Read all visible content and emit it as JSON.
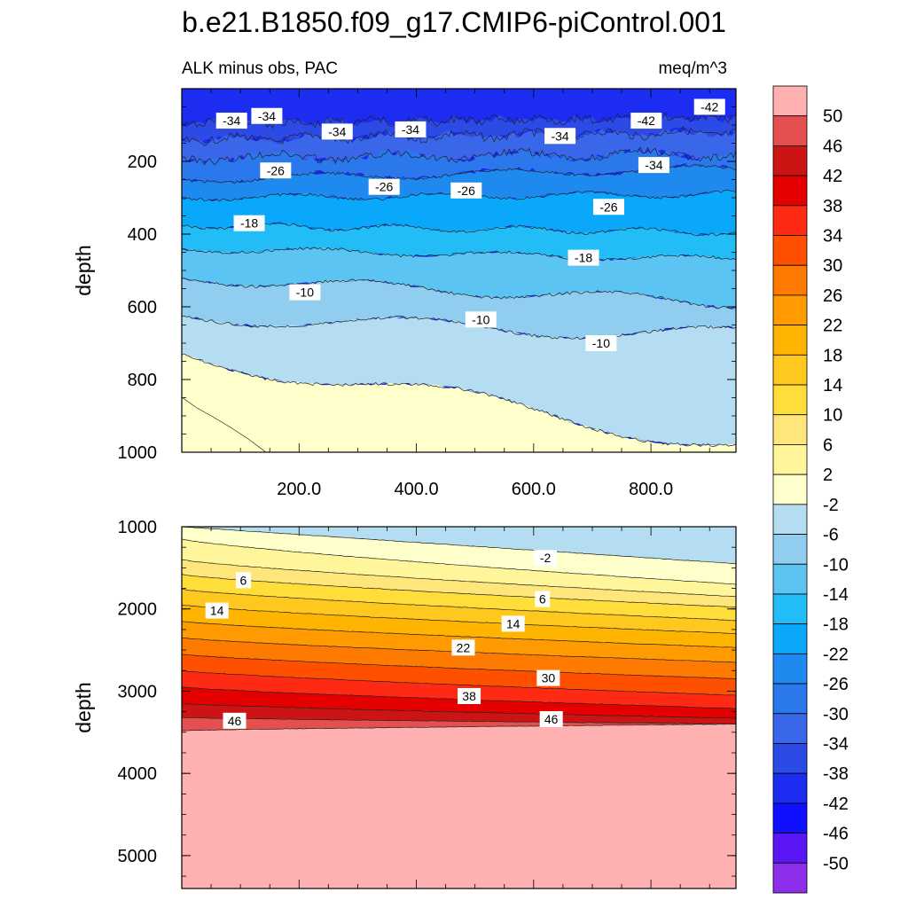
{
  "page": {
    "title": "b.e21.B1850.f09_g17.CMIP6-piControl.001"
  },
  "chart_data": {
    "type": "contour",
    "subtitle_left": "ALK minus obs, PAC",
    "subtitle_right": "meq/m^3",
    "variable": "ALK minus obs",
    "region": "PAC",
    "units": "meq/m^3",
    "colorbar": {
      "levels": [
        -50,
        -46,
        -42,
        -38,
        -34,
        -30,
        -26,
        -22,
        -18,
        -14,
        -10,
        -6,
        -2,
        2,
        6,
        10,
        14,
        18,
        22,
        26,
        30,
        34,
        38,
        42,
        46,
        50
      ],
      "labels": [
        "-50",
        "-46",
        "-42",
        "-38",
        "-34",
        "-30",
        "-26",
        "-22",
        "-18",
        "-14",
        "-10",
        "-6",
        "-2",
        "2",
        "6",
        "10",
        "14",
        "18",
        "22",
        "26",
        "30",
        "34",
        "38",
        "42",
        "46",
        "50"
      ],
      "colors": [
        "#8C2EEA",
        "#5A16F5",
        "#1010FF",
        "#1C2CF0",
        "#2C4AE6",
        "#3A66EA",
        "#2A78EC",
        "#1E8AF0",
        "#0AA8FA",
        "#22BCF6",
        "#5CC4F2",
        "#90CDEE",
        "#B4DDF2",
        "#FFFFCC",
        "#FFF59A",
        "#FFE67A",
        "#FFDE3A",
        "#FFC81E",
        "#FFB400",
        "#FF9A00",
        "#FF7A00",
        "#FF5000",
        "#FF2A14",
        "#E40000",
        "#CC1414",
        "#E45050",
        "#FFB0B0"
      ]
    },
    "panels": [
      {
        "name": "upper",
        "ylabel": "depth",
        "ylim": [
          0,
          1000
        ],
        "yticks": [
          "200",
          "400",
          "600",
          "800",
          "1000"
        ],
        "xlim": [
          0,
          945
        ],
        "xticks": [
          "200.0",
          "400.0",
          "600.0",
          "800.0"
        ],
        "contour_labels": [
          {
            "text": "-34",
            "x": 85,
            "y": 88
          },
          {
            "text": "-34",
            "x": 145,
            "y": 75
          },
          {
            "text": "-34",
            "x": 265,
            "y": 118
          },
          {
            "text": "-34",
            "x": 390,
            "y": 112
          },
          {
            "text": "-34",
            "x": 645,
            "y": 130
          },
          {
            "text": "-34",
            "x": 805,
            "y": 210
          },
          {
            "text": "-42",
            "x": 792,
            "y": 88
          },
          {
            "text": "-42",
            "x": 900,
            "y": 50
          },
          {
            "text": "-26",
            "x": 160,
            "y": 225
          },
          {
            "text": "-26",
            "x": 345,
            "y": 270
          },
          {
            "text": "-26",
            "x": 485,
            "y": 280
          },
          {
            "text": "-26",
            "x": 728,
            "y": 325
          },
          {
            "text": "-18",
            "x": 115,
            "y": 370
          },
          {
            "text": "-18",
            "x": 685,
            "y": 465
          },
          {
            "text": "-10",
            "x": 210,
            "y": 560
          },
          {
            "text": "-10",
            "x": 510,
            "y": 635
          },
          {
            "text": "-10",
            "x": 715,
            "y": 700
          }
        ]
      },
      {
        "name": "lower",
        "ylabel": "depth",
        "ylim": [
          1000,
          5400
        ],
        "yticks": [
          "1000",
          "2000",
          "3000",
          "4000",
          "5000"
        ],
        "xlim": [
          0,
          945
        ],
        "contour_labels": [
          {
            "text": "-2",
            "x": 620,
            "y": 1380
          },
          {
            "text": "6",
            "x": 105,
            "y": 1650
          },
          {
            "text": "6",
            "x": 615,
            "y": 1880
          },
          {
            "text": "14",
            "x": 60,
            "y": 2020
          },
          {
            "text": "14",
            "x": 565,
            "y": 2180
          },
          {
            "text": "22",
            "x": 480,
            "y": 2470
          },
          {
            "text": "30",
            "x": 625,
            "y": 2840
          },
          {
            "text": "38",
            "x": 490,
            "y": 3060
          },
          {
            "text": "46",
            "x": 90,
            "y": 3360
          },
          {
            "text": "46",
            "x": 630,
            "y": 3340
          }
        ]
      }
    ]
  }
}
